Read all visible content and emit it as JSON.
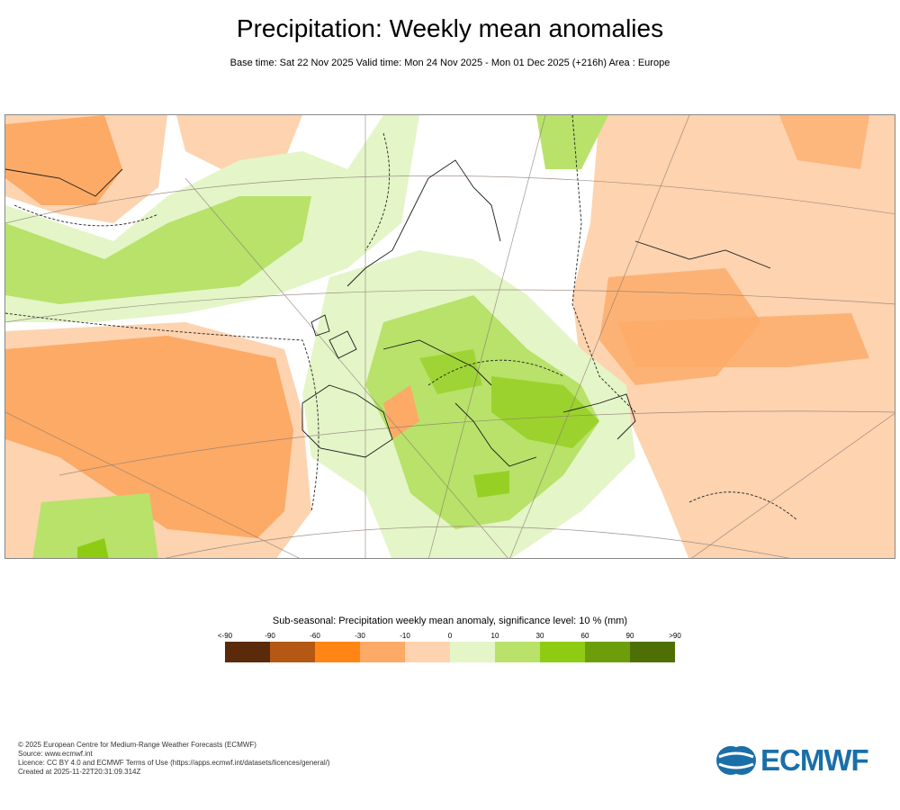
{
  "header": {
    "title": "Precipitation: Weekly mean anomalies",
    "subtitle": "Base time: Sat 22 Nov 2025 Valid time: Mon 24 Nov 2025 - Mon 01 Dec 2025 (+216h) Area : Europe"
  },
  "legend": {
    "title": "Sub-seasonal: Precipitation weekly mean anomaly, significance level: 10 % (mm)",
    "ticks": [
      "<-90",
      "-90",
      "-60",
      "-30",
      "-10",
      "0",
      "10",
      "30",
      "60",
      "90",
      ">90"
    ],
    "colors": [
      "#5a2a0a",
      "#b45814",
      "#ff8514",
      "#fcaa66",
      "#fdd3b0",
      "#e4f5c8",
      "#b8e26a",
      "#8ecc14",
      "#6c9e0c",
      "#4e6e06"
    ]
  },
  "footer": {
    "line1": "© 2025 European Centre for Medium-Range Weather Forecasts (ECMWF)",
    "line2": "Source: www.ecmwf.int",
    "line3": "Licence: CC BY 4.0 and ECMWF Terms of Use (https://apps.ecmwf.int/datasets/licences/general/)",
    "line4": "Created at 2025-11-22T20:31:09.314Z"
  },
  "logo": {
    "text": "ECMWF"
  }
}
